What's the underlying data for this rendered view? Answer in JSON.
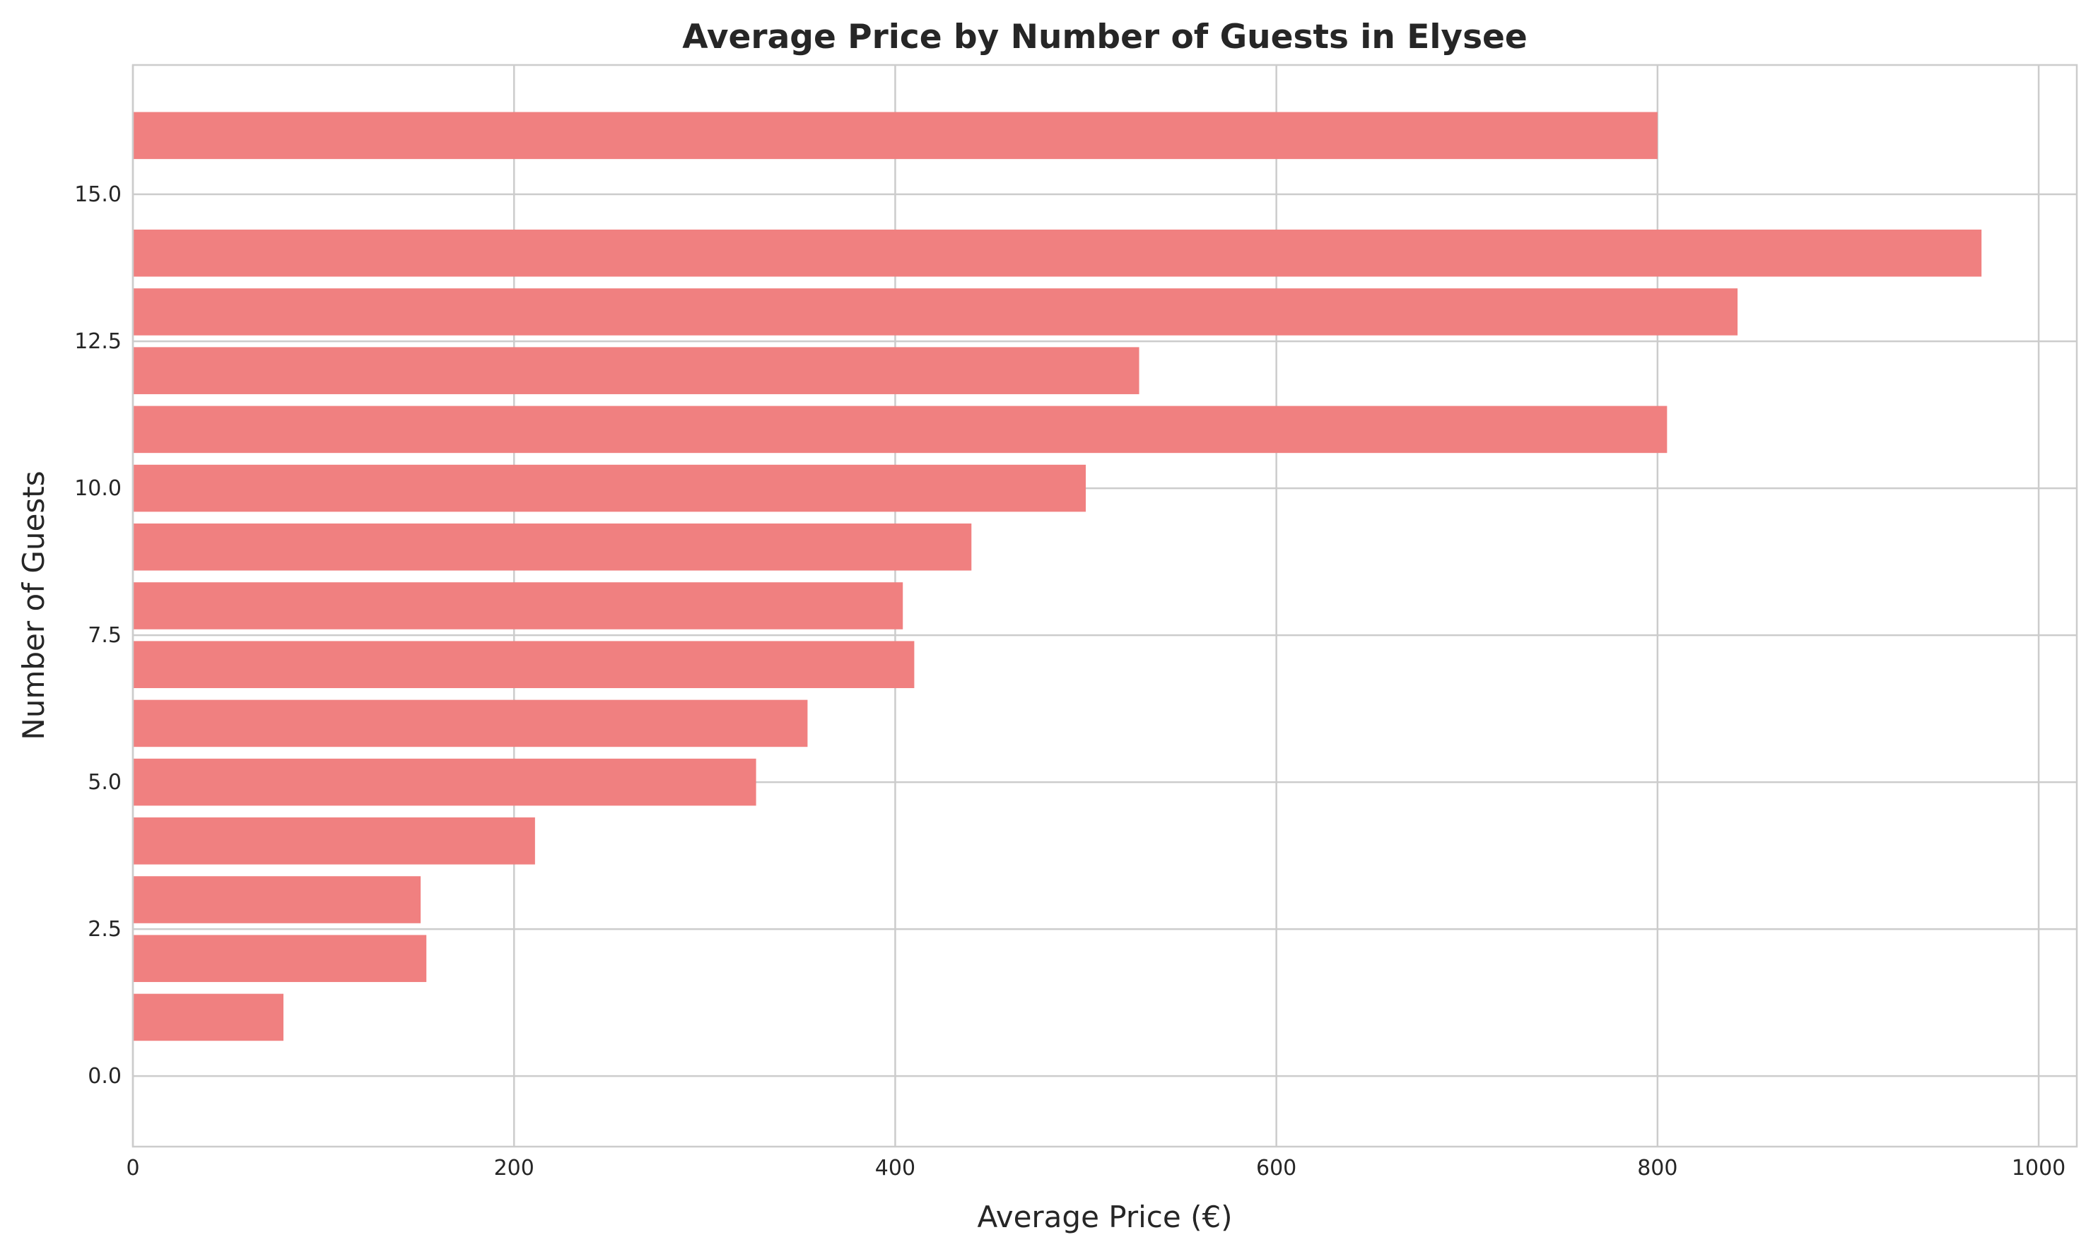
{
  "chart_data": {
    "type": "bar",
    "orientation": "horizontal",
    "title": "Average Price by Number of Guests in Elysee",
    "xlabel": "Average Price (€)",
    "ylabel": "Number of Guests",
    "xlim": [
      0,
      1020
    ],
    "ylim": [
      -1.2,
      17.2
    ],
    "xticks": [
      0,
      200,
      400,
      600,
      800,
      1000
    ],
    "xtick_labels": [
      "0",
      "200",
      "400",
      "600",
      "800",
      "1000"
    ],
    "yticks": [
      0,
      2.5,
      5,
      7.5,
      10,
      12.5,
      15
    ],
    "ytick_labels": [
      "0.0",
      "2.5",
      "5.0",
      "7.5",
      "10.0",
      "12.5",
      "15.0"
    ],
    "grid": true,
    "bar_color": "#f08080",
    "x": [
      1,
      2,
      3,
      4,
      5,
      6,
      7,
      8,
      9,
      10,
      11,
      12,
      13,
      14,
      16
    ],
    "values": [
      79,
      154,
      151,
      211,
      327,
      354,
      410,
      404,
      440,
      500,
      805,
      528,
      842,
      970,
      800
    ]
  }
}
